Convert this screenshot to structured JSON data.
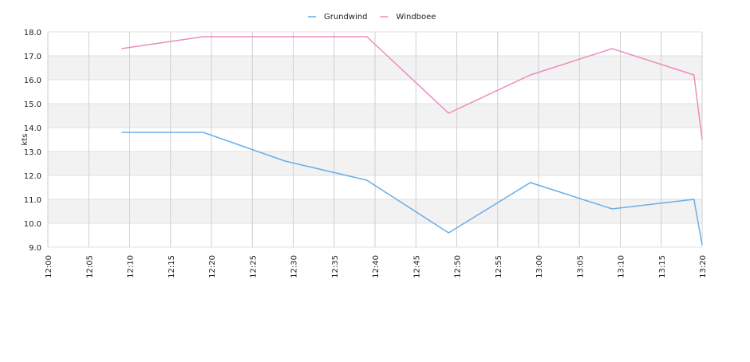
{
  "chart_data": {
    "type": "line",
    "y_label": "kts",
    "grid": true,
    "x": [
      "12:09",
      "12:19",
      "12:29",
      "12:39",
      "12:49",
      "12:59",
      "13:09",
      "13:19",
      "13:20"
    ],
    "series": [
      {
        "name": "Grundwind",
        "color": "#6aaee8",
        "values": [
          13.8,
          13.8,
          12.6,
          11.8,
          9.6,
          11.7,
          10.6,
          11.0,
          9.1
        ]
      },
      {
        "name": "Windboee",
        "color": "#ee8cc0",
        "values": [
          17.3,
          17.8,
          17.8,
          17.8,
          14.6,
          16.2,
          17.3,
          16.2,
          13.5
        ]
      }
    ],
    "xlim": [
      "12:00",
      "13:20"
    ],
    "xticks": [
      "12:00",
      "12:05",
      "12:10",
      "12:15",
      "12:20",
      "12:25",
      "12:30",
      "12:35",
      "12:40",
      "12:45",
      "12:50",
      "12:55",
      "13:00",
      "13:05",
      "13:10",
      "13:15",
      "13:20"
    ],
    "ylim": [
      9,
      18
    ],
    "yticks": [
      {
        "value": 9,
        "label": "9.0"
      },
      {
        "value": 10,
        "label": "10.0"
      },
      {
        "value": 11,
        "label": "11.0"
      },
      {
        "value": 12,
        "label": "12.0"
      },
      {
        "value": 13,
        "label": "13.0"
      },
      {
        "value": 14,
        "label": "14.0"
      },
      {
        "value": 15,
        "label": "15.0"
      },
      {
        "value": 16,
        "label": "16.0"
      },
      {
        "value": 17,
        "label": "17.0"
      },
      {
        "value": 18,
        "label": "18.0"
      }
    ],
    "legend": "top"
  }
}
